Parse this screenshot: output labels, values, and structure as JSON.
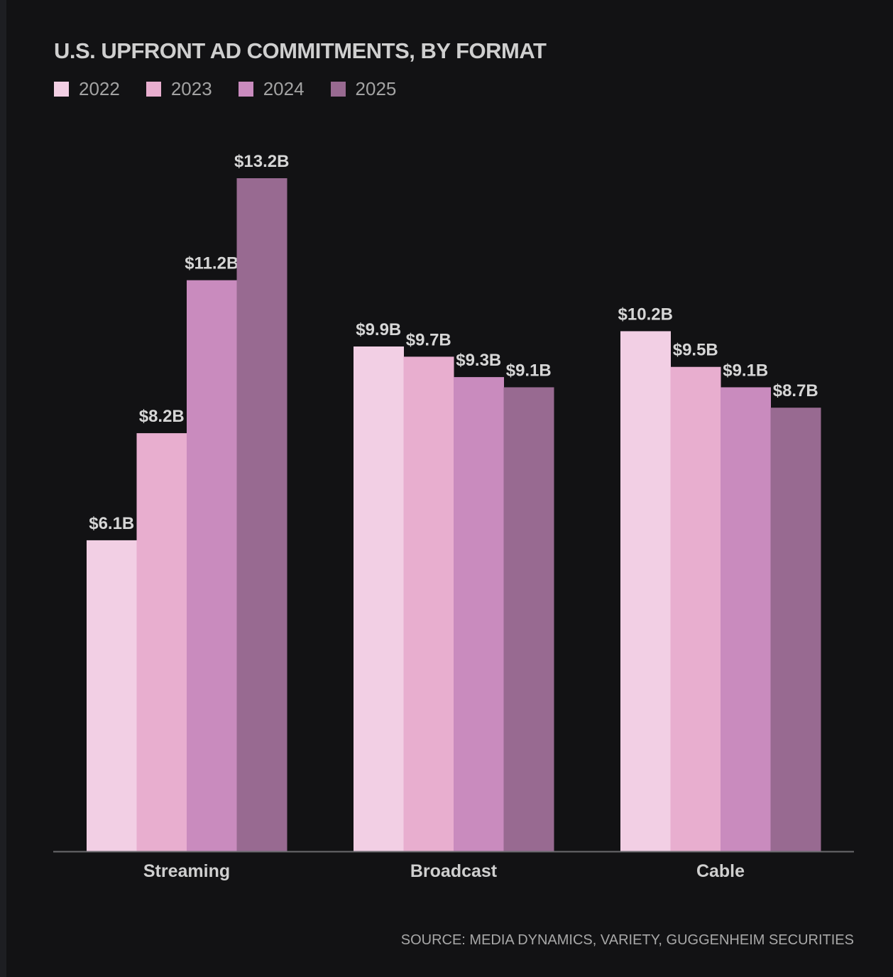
{
  "chart_data": {
    "type": "bar",
    "title": "U.S. UPFRONT AD COMMITMENTS, BY FORMAT",
    "categories": [
      "Streaming",
      "Broadcast",
      "Cable"
    ],
    "series": [
      {
        "name": "2022",
        "color": "#f2cfe4",
        "values": [
          6.1,
          9.9,
          10.2
        ],
        "labels": [
          "$6.1B",
          "$9.9B",
          "$10.2B"
        ]
      },
      {
        "name": "2023",
        "color": "#e8aecf",
        "values": [
          8.2,
          9.7,
          9.5
        ],
        "labels": [
          "$8.2B",
          "$9.7B",
          "$9.5B"
        ]
      },
      {
        "name": "2024",
        "color": "#c98bbe",
        "values": [
          11.2,
          9.3,
          9.1
        ],
        "labels": [
          "$11.2B",
          "$9.3B",
          "$9.1B"
        ]
      },
      {
        "name": "2025",
        "color": "#986a91",
        "values": [
          13.2,
          9.1,
          8.7
        ],
        "labels": [
          "$13.2B",
          "$9.1B",
          "$8.7B"
        ]
      }
    ],
    "xlabel": "",
    "ylabel": "",
    "ylim": [
      0,
      13.2
    ],
    "grid": false,
    "legend": "top-left",
    "source": "SOURCE: MEDIA DYNAMICS, VARIETY, GUGGENHEIM SECURITIES"
  }
}
